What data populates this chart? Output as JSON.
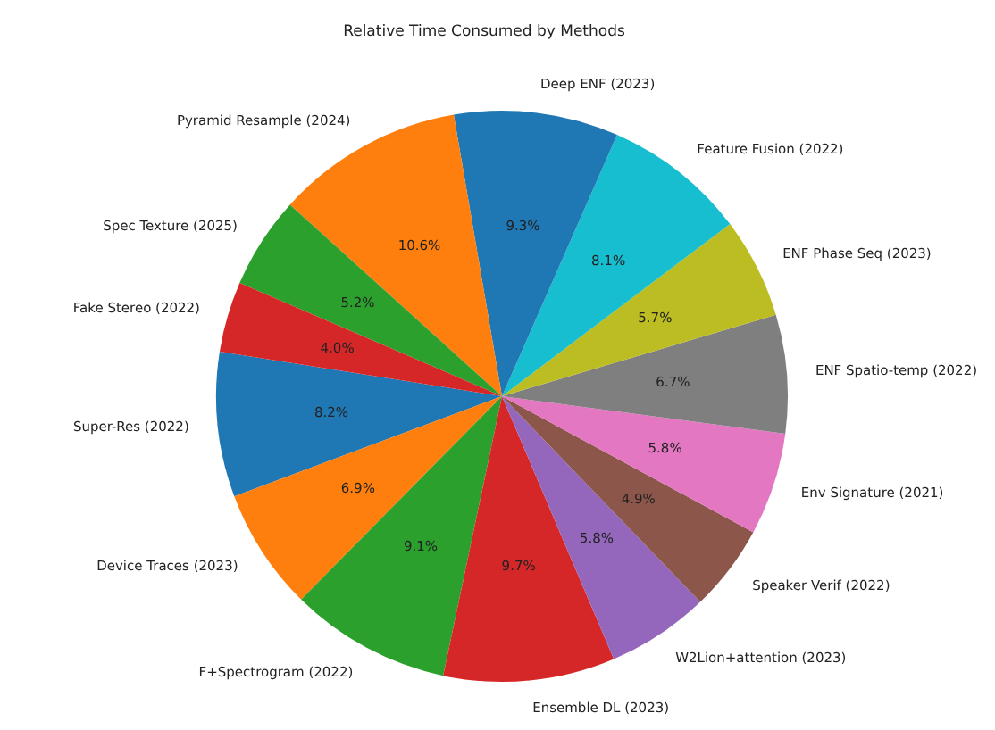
{
  "chart_data": {
    "type": "pie",
    "title": "Relative Time Consumed by Methods",
    "categories": [
      "Super-Res (2022)",
      "Device Traces (2023)",
      "F+Spectrogram (2022)",
      "Ensemble DL (2023)",
      "W2Lion+attention (2023)",
      "Speaker Verif (2022)",
      "Env Signature (2021)",
      "ENF Spatio-temp (2022)",
      "ENF Phase Seq (2023)",
      "Feature Fusion (2022)",
      "Deep ENF (2023)",
      "Pyramid Resample (2024)",
      "Spec Texture (2025)",
      "Fake Stereo (2022)"
    ],
    "values": [
      8.2,
      6.9,
      9.1,
      9.7,
      5.8,
      4.9,
      5.8,
      6.7,
      5.7,
      8.1,
      9.3,
      10.6,
      5.2,
      4.0
    ],
    "value_labels": [
      "8.2%",
      "6.9%",
      "9.1%",
      "9.7%",
      "5.8%",
      "4.9%",
      "5.8%",
      "6.7%",
      "5.7%",
      "8.1%",
      "9.3%",
      "10.6%",
      "5.2%",
      "4.0%"
    ],
    "colors": [
      "#1f77b4",
      "#ff7f0e",
      "#2ca02c",
      "#d62728",
      "#9467bd",
      "#8c564b",
      "#e377c2",
      "#7f7f7f",
      "#bcbd22",
      "#17becf",
      "#1f77b4",
      "#ff7f0e",
      "#2ca02c",
      "#d62728"
    ]
  }
}
